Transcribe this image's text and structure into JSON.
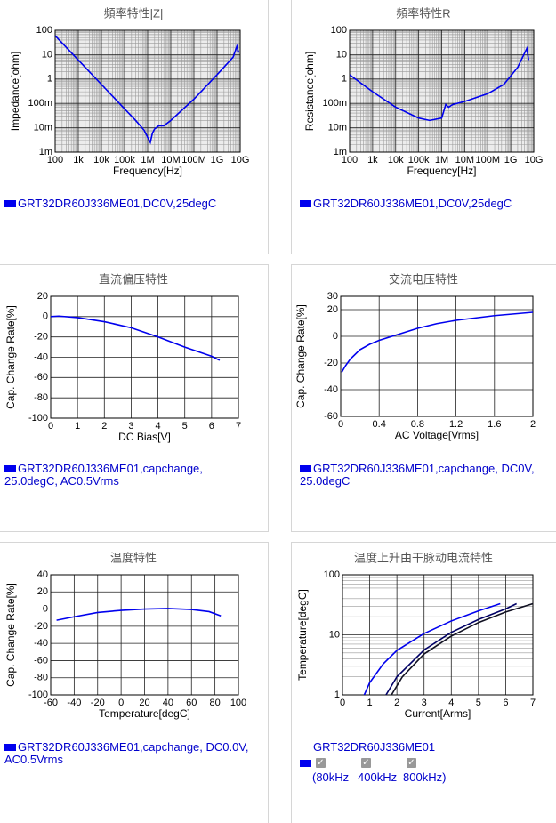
{
  "chart_data": [
    {
      "type": "line",
      "title": "頻率特性|Z|",
      "xlabel": "Frequency[Hz]",
      "ylabel": "Impedance[ohm]",
      "xscale": "log",
      "yscale": "log",
      "grid": true,
      "minor_grid": true,
      "background": "#ececec",
      "xlim": [
        100,
        10000000000
      ],
      "ylim": [
        0.001,
        100
      ],
      "xticks": [
        100,
        {
          "value": 1000,
          "label": "1k"
        },
        {
          "value": 10000,
          "label": "10k"
        },
        {
          "value": 100000,
          "label": "100k"
        },
        {
          "value": 1000000,
          "label": "1M"
        },
        {
          "value": 10000000,
          "label": "10M"
        },
        {
          "value": 100000000,
          "label": "100M"
        },
        {
          "value": 1000000000,
          "label": "1G"
        },
        {
          "value": 10000000000,
          "label": "10G"
        }
      ],
      "yticks": [
        {
          "value": 0.001,
          "label": "1m"
        },
        {
          "value": 0.01,
          "label": "10m"
        },
        {
          "value": 0.1,
          "label": "100m"
        },
        1,
        10,
        100
      ],
      "series": [
        {
          "name": "GRT32DR60J336ME01,DC0V,25degC",
          "color": "#0000ee",
          "x": [
            100,
            1000,
            10000,
            100000,
            300000,
            700000,
            1000000,
            1300000,
            1600000,
            2000000,
            3000000,
            5000000,
            10000000,
            100000000,
            1000000000,
            5000000000,
            7500000000,
            8000000000,
            8500000000
          ],
          "values": [
            60,
            6,
            0.6,
            0.06,
            0.02,
            0.008,
            0.004,
            0.0025,
            0.006,
            0.009,
            0.012,
            0.012,
            0.02,
            0.15,
            1.5,
            8,
            25,
            12,
            15
          ]
        }
      ]
    },
    {
      "type": "line",
      "title": "頻率特性R",
      "xlabel": "Frequency[Hz]",
      "ylabel": "Resistance[ohm]",
      "xscale": "log",
      "yscale": "log",
      "grid": true,
      "minor_grid": true,
      "background": "#ececec",
      "xlim": [
        100,
        10000000000
      ],
      "ylim": [
        0.001,
        100
      ],
      "xticks": [
        100,
        {
          "value": 1000,
          "label": "1k"
        },
        {
          "value": 10000,
          "label": "10k"
        },
        {
          "value": 100000,
          "label": "100k"
        },
        {
          "value": 1000000,
          "label": "1M"
        },
        {
          "value": 10000000,
          "label": "10M"
        },
        {
          "value": 100000000,
          "label": "100M"
        },
        {
          "value": 1000000000,
          "label": "1G"
        },
        {
          "value": 10000000000,
          "label": "10G"
        }
      ],
      "yticks": [
        {
          "value": 0.001,
          "label": "1m"
        },
        {
          "value": 0.01,
          "label": "10m"
        },
        {
          "value": 0.1,
          "label": "100m"
        },
        1,
        10,
        100
      ],
      "series": [
        {
          "name": "GRT32DR60J336ME01,DC0V,25degC",
          "color": "#0000ee",
          "x": [
            100,
            1000,
            10000,
            100000,
            300000,
            1000000,
            1500000,
            2000000,
            3000000,
            10000000,
            100000000,
            500000000,
            2000000000,
            5000000000,
            6000000000
          ],
          "values": [
            1.5,
            0.3,
            0.07,
            0.025,
            0.02,
            0.025,
            0.09,
            0.07,
            0.09,
            0.12,
            0.25,
            0.6,
            3,
            18,
            6
          ]
        }
      ]
    },
    {
      "type": "line",
      "title": "直流偏压特性",
      "xlabel": "DC Bias[V]",
      "ylabel": "Cap. Change Rate[%]",
      "xscale": "linear",
      "yscale": "linear",
      "grid": true,
      "minor_grid": false,
      "background": "#ffffff",
      "xlim": [
        0,
        7
      ],
      "ylim": [
        -100,
        20
      ],
      "xticks": [
        0,
        1,
        2,
        3,
        4,
        5,
        6,
        7
      ],
      "yticks": [
        -100,
        -80,
        -60,
        -40,
        -20,
        0,
        20
      ],
      "series": [
        {
          "name": "GRT32DR60J336ME01,capchange, 25.0degC, AC0.5Vrms",
          "color": "#0000ee",
          "x": [
            0,
            0.3,
            1,
            2,
            3,
            4,
            5,
            6,
            6.3
          ],
          "values": [
            0,
            0.5,
            -1,
            -5,
            -11,
            -20,
            -30,
            -39,
            -43
          ]
        }
      ]
    },
    {
      "type": "line",
      "title": "交流电压特性",
      "xlabel": "AC Voltage[Vrms]",
      "ylabel": "Cap. Change Rate[%]",
      "xscale": "linear",
      "yscale": "linear",
      "grid": true,
      "minor_grid": false,
      "background": "#ffffff",
      "xlim": [
        0,
        2
      ],
      "ylim": [
        -60,
        30
      ],
      "xticks": [
        0,
        0.4,
        0.8,
        1.2,
        1.6,
        2
      ],
      "yticks": [
        -60,
        -40,
        -20,
        0,
        20,
        30
      ],
      "series": [
        {
          "name": "GRT32DR60J336ME01,capchange, DC0V, 25.0degC",
          "color": "#0000ee",
          "x": [
            0.01,
            0.05,
            0.1,
            0.2,
            0.3,
            0.4,
            0.6,
            0.8,
            1,
            1.2,
            1.6,
            2
          ],
          "values": [
            -27,
            -22,
            -17,
            -10,
            -6,
            -3,
            1.5,
            6,
            9.5,
            12,
            15.5,
            18
          ]
        }
      ]
    },
    {
      "type": "line",
      "title": "温度特性",
      "xlabel": "Temperature[degC]",
      "ylabel": "Cap. Change Rate[%]",
      "xscale": "linear",
      "yscale": "linear",
      "grid": true,
      "minor_grid": false,
      "background": "#ffffff",
      "xlim": [
        -60,
        100
      ],
      "ylim": [
        -100,
        40
      ],
      "xticks": [
        -60,
        -40,
        -20,
        0,
        20,
        40,
        60,
        80,
        100
      ],
      "yticks": [
        -100,
        -80,
        -60,
        -40,
        -20,
        0,
        20,
        40
      ],
      "series": [
        {
          "name": "GRT32DR60J336ME01,capchange, DC0.0V, AC0.5Vrms",
          "color": "#0000ee",
          "x": [
            -55,
            -40,
            -20,
            0,
            20,
            40,
            60,
            75,
            85
          ],
          "values": [
            -13,
            -9,
            -4,
            -1.5,
            0,
            0.7,
            -0.5,
            -3,
            -8
          ]
        }
      ]
    },
    {
      "type": "line",
      "title": "温度上升由干脉动电流特性",
      "xlabel": "Current[Arms]",
      "ylabel": "Temperature[degC]",
      "xscale": "linear",
      "yscale": "log",
      "grid": true,
      "minor_grid": true,
      "background": "#ffffff",
      "xlim": [
        0,
        7
      ],
      "ylim": [
        1,
        100
      ],
      "xticks": [
        0,
        1,
        2,
        3,
        4,
        5,
        6,
        7
      ],
      "yticks": [
        1,
        10,
        100
      ],
      "legend_title": "GRT32DR60J336ME01",
      "series": [
        {
          "name": "(80kHz",
          "color": "#0000ee",
          "x": [
            0.8,
            1,
            1.5,
            2,
            3,
            4,
            5,
            5.8
          ],
          "values": [
            1,
            1.6,
            3.3,
            5.5,
            10.5,
            17,
            25,
            33
          ]
        },
        {
          "name": "400kHz",
          "color": "#000066",
          "x": [
            1.6,
            2,
            3,
            4,
            5,
            6,
            6.4
          ],
          "values": [
            1,
            2,
            5.6,
            11,
            18,
            27,
            33
          ]
        },
        {
          "name": "800kHz)",
          "color": "#111122",
          "x": [
            1.8,
            2.2,
            3,
            4,
            5,
            6,
            7
          ],
          "values": [
            1,
            2,
            4.8,
            9.5,
            16,
            24,
            33
          ]
        }
      ]
    }
  ]
}
